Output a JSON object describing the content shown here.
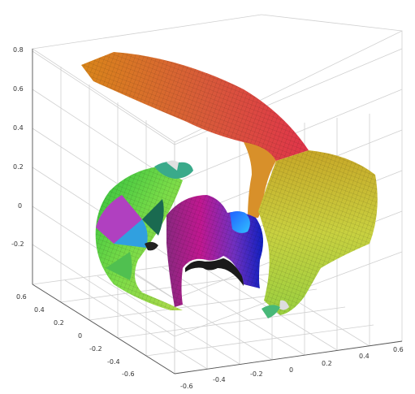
{
  "chart_data": {
    "type": "surface3d",
    "title": "",
    "xlabel": "",
    "ylabel": "",
    "zlabel": "",
    "grid": true,
    "colormap": "hsv",
    "x_ticks": [
      "-0.6",
      "-0.4",
      "-0.2",
      "0",
      "0.2",
      "0.4",
      "0.6"
    ],
    "y_ticks": [
      "0.6",
      "0.4",
      "0.2",
      "0",
      "-0.2",
      "-0.4",
      "-0.6"
    ],
    "z_ticks": [
      "0.8",
      "0.6",
      "0.4",
      "0.2",
      "0",
      "-0.2"
    ],
    "xlim": [
      -0.6,
      0.6
    ],
    "ylim": [
      -0.6,
      0.6
    ],
    "zlim": [
      -0.3,
      0.85
    ]
  }
}
